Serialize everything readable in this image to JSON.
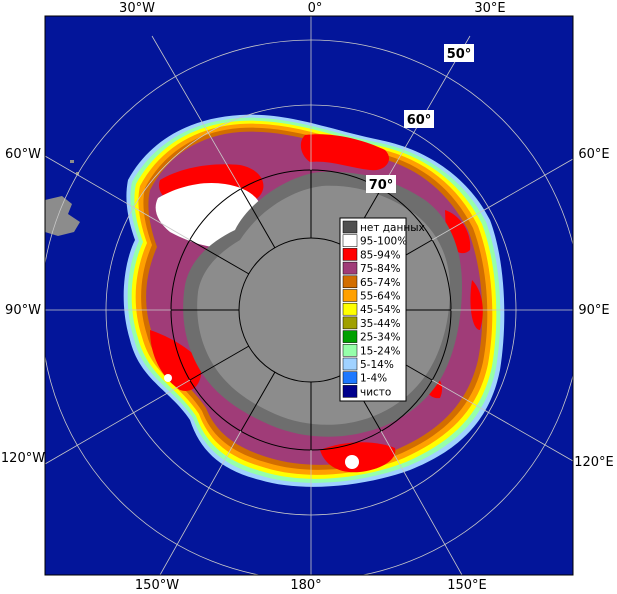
{
  "meridian_labels": {
    "w30": "30°W",
    "zero": "0°",
    "e30": "30°E",
    "w60": "60°W",
    "e60": "60°E",
    "w90": "90°W",
    "e90": "90°E",
    "w120": "120°W",
    "e120": "120°E",
    "w150": "150°W",
    "lon180": "180°",
    "e150": "150°E"
  },
  "latitude_labels": {
    "lat50": "50°",
    "lat60": "60°",
    "lat70": "70°"
  },
  "legend": [
    {
      "label": "нет данных",
      "color": "#505050"
    },
    {
      "label": "95-100%",
      "color": "#ffffff"
    },
    {
      "label": "85-94%",
      "color": "#ff0000"
    },
    {
      "label": "75-84%",
      "color": "#a03c78"
    },
    {
      "label": "65-74%",
      "color": "#d26e00"
    },
    {
      "label": "55-64%",
      "color": "#ffa000"
    },
    {
      "label": "45-54%",
      "color": "#ffff00"
    },
    {
      "label": "35-44%",
      "color": "#a0a000"
    },
    {
      "label": "25-34%",
      "color": "#00a000"
    },
    {
      "label": "15-24%",
      "color": "#96ffaa"
    },
    {
      "label": "5-14%",
      "color": "#a0d2ff"
    },
    {
      "label": "1-4%",
      "color": "#1e78ff"
    },
    {
      "label": "чисто",
      "color": "#00008c"
    }
  ],
  "colors": {
    "ocean": "#03159a",
    "land": "#8c8c8c",
    "shelf_ice": "#6e6e6e",
    "grid": "#000000"
  }
}
